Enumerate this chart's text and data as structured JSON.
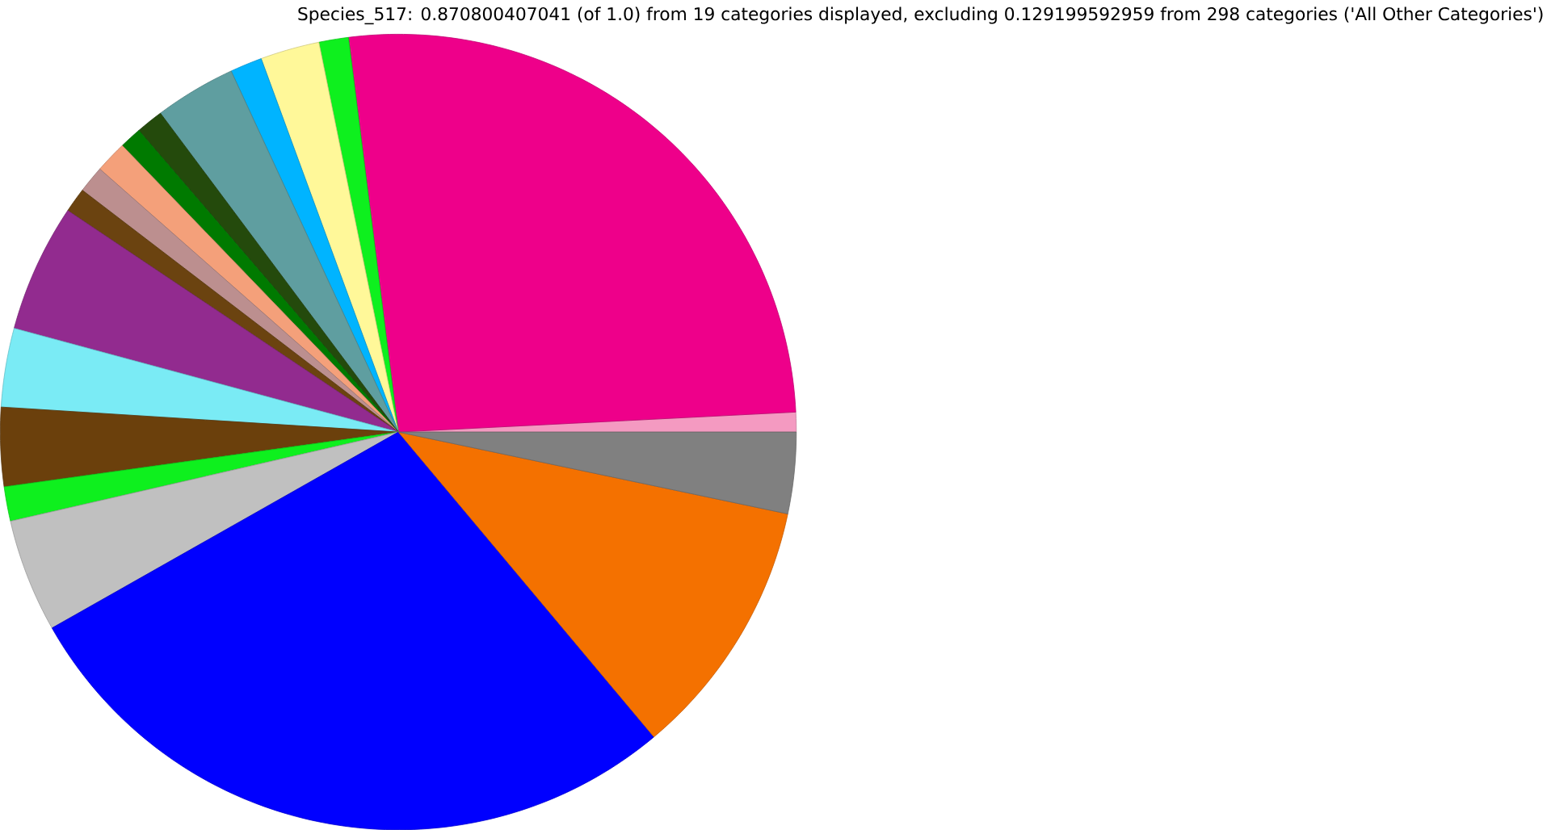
{
  "chart_data": {
    "type": "pie",
    "title": "Species_517: 0.870800407041 (of 1.0) from 19 categories displayed, excluding 0.129199592959 from 298 categories ('All Other Categories')",
    "categories": [
      null,
      null,
      null,
      null,
      null,
      null,
      null,
      null,
      null,
      null,
      null,
      null,
      null,
      null,
      null,
      null,
      null,
      null,
      null
    ],
    "values": [
      0.8,
      26.2,
      1.2,
      2.4,
      1.3,
      3.3,
      1.1,
      0.9,
      1.3,
      1.1,
      1.0,
      5.2,
      3.2,
      3.2,
      1.4,
      4.6,
      27.9,
      10.6,
      3.3
    ],
    "colors": [
      "#f49ac1",
      "#ee008a",
      "#0ef01e",
      "#fff899",
      "#00b4ff",
      "#5f9ea0",
      "#244a0c",
      "#007a00",
      "#f4a07a",
      "#bc8f8f",
      "#6b4310",
      "#922b8f",
      "#7aebf5",
      "#6b400c",
      "#0ef01e",
      "#c0c0c0",
      "#0000ff",
      "#f47100",
      "#808080"
    ]
  }
}
